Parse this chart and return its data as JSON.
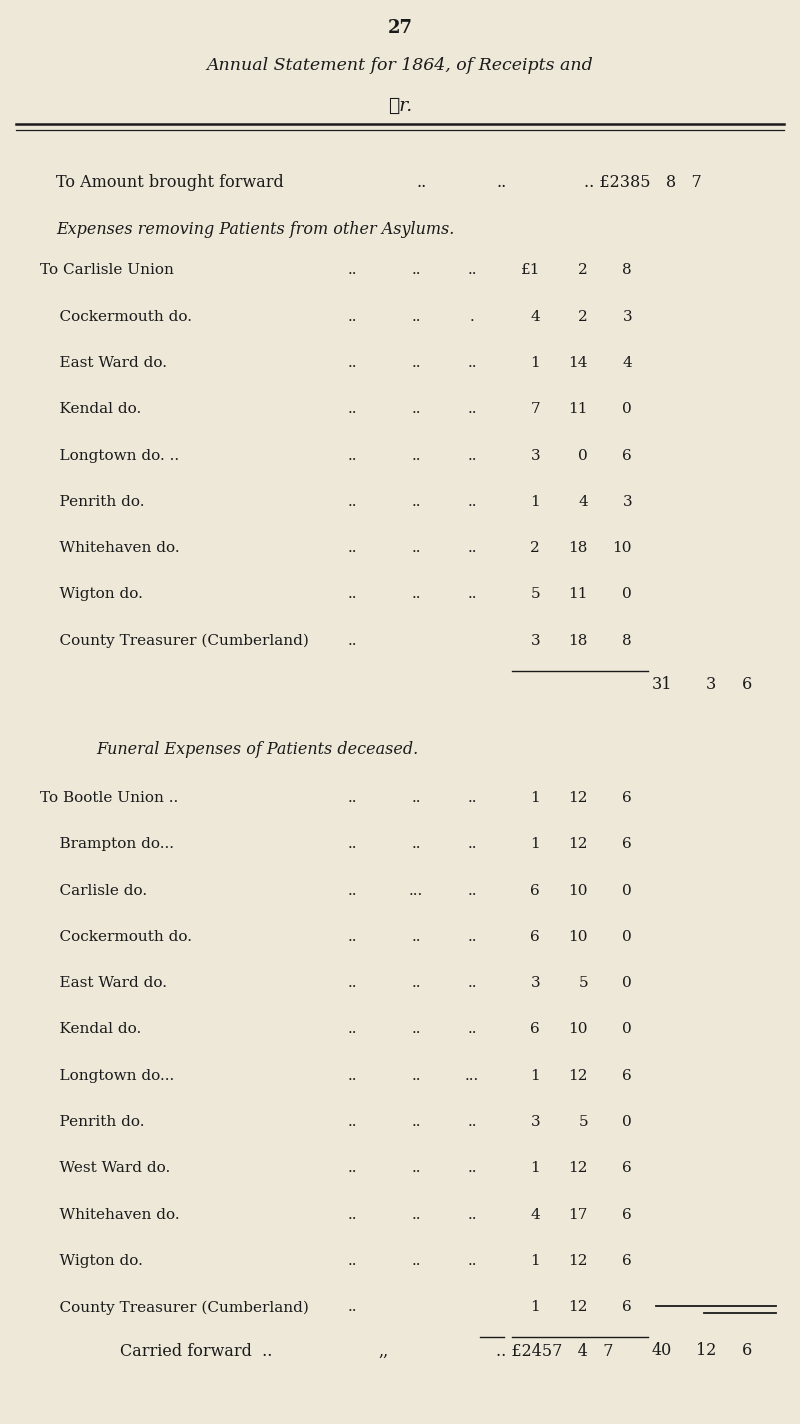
{
  "bg_color": "#EDE8D8",
  "text_color": "#1a1a1a",
  "page_number": "27",
  "title_line1": "Annual Statement for 1864, of Receipts and",
  "title_line2": "ℒr.",
  "brought_forward_label": "To Amount brought forward",
  "brought_forward_dots": "..          ..",
  "brought_forward_amount": ".. £2385   8   7",
  "section1_heading": "Expenses removing Patients from other Asylums.",
  "section1_rows": [
    [
      "To Carlisle Union",
      "..",
      "..",
      "..",
      "£1",
      "2",
      "8"
    ],
    [
      "    Cockermouth do.",
      "..",
      "..",
      ".",
      "4",
      "2",
      "3"
    ],
    [
      "    East Ward do.",
      "..",
      "..",
      "..",
      "1",
      "14",
      "4"
    ],
    [
      "    Kendal do.",
      "..",
      "..",
      "..",
      "7",
      "11",
      "0"
    ],
    [
      "    Longtown do. ..",
      "..",
      "..",
      "..",
      "3",
      "0",
      "6"
    ],
    [
      "    Penrith do.",
      "..",
      "..",
      "..",
      "1",
      "4",
      "3"
    ],
    [
      "    Whitehaven do.",
      "..",
      "..",
      "..",
      "2",
      "18",
      "10"
    ],
    [
      "    Wigton do.",
      "..",
      "..",
      "..",
      "5",
      "11",
      "0"
    ],
    [
      "    County Treasurer (Cumberland)",
      "..",
      "",
      "",
      "3",
      "18",
      "8"
    ]
  ],
  "section1_total_pounds": "31",
  "section1_total_shillings": "3",
  "section1_total_pence": "6",
  "section2_heading": "Funeral Expenses of Patients deceased.",
  "section2_rows": [
    [
      "To Bootle Union ..",
      "..",
      "..",
      "..",
      "1",
      "12",
      "6"
    ],
    [
      "    Brampton do...",
      "..",
      "..",
      "..",
      "1",
      "12",
      "6"
    ],
    [
      "    Carlisle do.",
      "..",
      "...",
      "..",
      "6",
      "10",
      "0"
    ],
    [
      "    Cockermouth do.",
      "..",
      "..",
      "..",
      "6",
      "10",
      "0"
    ],
    [
      "    East Ward do.",
      "..",
      "..",
      "..",
      "3",
      "5",
      "0"
    ],
    [
      "    Kendal do.",
      "..",
      "..",
      "..",
      "6",
      "10",
      "0"
    ],
    [
      "    Longtown do...",
      "..",
      "..",
      "...",
      "1",
      "12",
      "6"
    ],
    [
      "    Penrith do.",
      "..",
      "..",
      "..",
      "3",
      "5",
      "0"
    ],
    [
      "    West Ward do.",
      "..",
      "..",
      "..",
      "1",
      "12",
      "6"
    ],
    [
      "    Whitehaven do.",
      "..",
      "..",
      "..",
      "4",
      "17",
      "6"
    ],
    [
      "    Wigton do.",
      "..",
      "..",
      "..",
      "1",
      "12",
      "6"
    ],
    [
      "    County Treasurer (Cumberland)",
      "..",
      "",
      "",
      "1",
      "12",
      "6"
    ]
  ],
  "section2_total_pounds": "40",
  "section2_total_shillings": "12",
  "section2_total_pence": "6",
  "carried_forward_label": "Carried forward  ..",
  "carried_forward_dots": ",,",
  "carried_forward_amount": ".. £2457   4   7"
}
